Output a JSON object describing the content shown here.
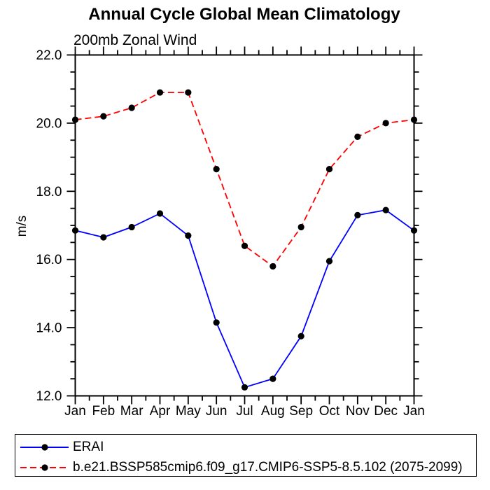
{
  "chart_data": {
    "type": "line",
    "title": "Annual Cycle Global Mean Climatology",
    "subtitle": "200mb Zonal Wind",
    "ylabel": "m/s",
    "x_categories": [
      "Jan",
      "Feb",
      "Mar",
      "Apr",
      "May",
      "Jun",
      "Jul",
      "Aug",
      "Sep",
      "Oct",
      "Nov",
      "Dec",
      "Jan"
    ],
    "ylim": [
      12.0,
      22.0
    ],
    "ytick_major_step": 2.0,
    "ytick_minor_step": 0.5,
    "ytick_labels": [
      "12.0",
      "14.0",
      "16.0",
      "18.0",
      "20.0",
      "22.0"
    ],
    "grid": false,
    "legend_position": "bottom-left-box",
    "marker": {
      "shape": "filled-circle",
      "color": "#000000",
      "radius_px": 4.6
    },
    "axis_color": "#000000",
    "series": [
      {
        "name": "ERAI",
        "color": "#0000ff",
        "line_style": "solid",
        "values": [
          16.85,
          16.65,
          16.95,
          17.35,
          16.7,
          14.15,
          12.25,
          12.5,
          13.75,
          15.95,
          17.3,
          17.45,
          16.85
        ]
      },
      {
        "name": "b.e21.BSSP585cmip6.f09_g17.CMIP6-SSP5-8.5.102 (2075-2099)",
        "color": "#ff0000",
        "line_style": "dashed",
        "values": [
          20.1,
          20.2,
          20.45,
          20.9,
          20.9,
          18.65,
          16.4,
          15.8,
          16.95,
          18.65,
          19.6,
          20.0,
          20.1
        ]
      }
    ]
  }
}
